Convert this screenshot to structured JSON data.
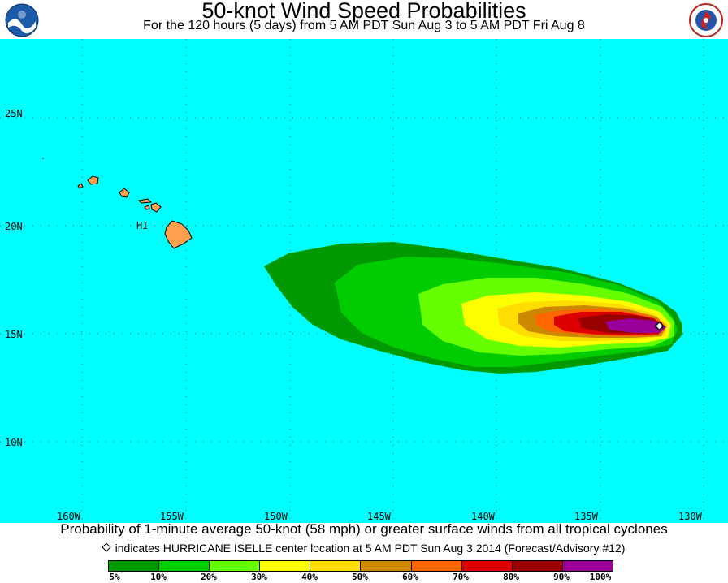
{
  "title": "50-knot Wind Speed Probabilities",
  "subtitle": "For the 120 hours (5 days) from 5 AM PDT Sun Aug 3 to 5 AM PDT Fri Aug 8",
  "lat_labels": [
    "25N",
    "20N",
    "15N",
    "10N"
  ],
  "lon_labels": [
    "160W",
    "155W",
    "150W",
    "145W",
    "140W",
    "135W",
    "130W"
  ],
  "island_label": "HI",
  "footer_line1": "Probability of 1-minute average 50-knot (58 mph) or greater surface winds from all tropical cyclones",
  "footer_line2": "indicates HURRICANE ISELLE center location at 5 AM PDT Sun Aug 3 2014 (Forecast/Advisory #12)",
  "legend": {
    "labels": [
      "5%",
      "10%",
      "20%",
      "30%",
      "40%",
      "50%",
      "60%",
      "70%",
      "80%",
      "90%",
      "100%"
    ],
    "colors": [
      "#009900",
      "#00cc00",
      "#66ff00",
      "#ffff00",
      "#ffdd00",
      "#cc8800",
      "#ff6600",
      "#dd0000",
      "#990000",
      "#990099"
    ]
  },
  "colors": {
    "ocean": "#00ffff",
    "land": "#ffa050",
    "storm_marker": "#ffffff"
  }
}
